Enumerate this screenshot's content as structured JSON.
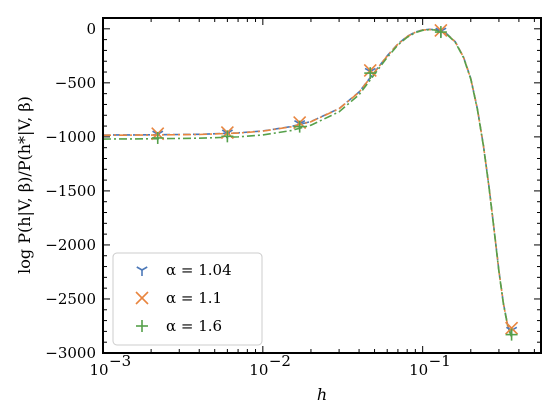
{
  "chart_data": {
    "type": "line",
    "title": "",
    "xlabel": "h",
    "ylabel": "log P(h|V, β)/P(h*|V, β)",
    "xscale": "log",
    "xlim": [
      0.001,
      0.55
    ],
    "ylim": [
      -3000,
      100
    ],
    "x_ticks": [
      {
        "value": 0.001,
        "label": "10",
        "exp": "−3"
      },
      {
        "value": 0.01,
        "label": "10",
        "exp": "−2"
      },
      {
        "value": 0.1,
        "label": "10",
        "exp": "−1"
      }
    ],
    "y_ticks": [
      {
        "value": 0,
        "label": "0"
      },
      {
        "value": -500,
        "label": "−500"
      },
      {
        "value": -1000,
        "label": "−1000"
      },
      {
        "value": -1500,
        "label": "−1500"
      },
      {
        "value": -2000,
        "label": "−2000"
      },
      {
        "value": -2500,
        "label": "−2500"
      },
      {
        "value": -3000,
        "label": "−3000"
      }
    ],
    "legend_position": "lower-left",
    "series": [
      {
        "name": "α = 1.04",
        "color": "#4c78b8",
        "marker": "tri-down",
        "line_style": "dashed",
        "markers_x": [
          0.0022,
          0.006,
          0.017,
          0.047,
          0.13,
          0.36
        ],
        "markers_y": [
          -975,
          -965,
          -878,
          -395,
          -22,
          -2790
        ],
        "curve_x": [
          0.001,
          0.002,
          0.004,
          0.007,
          0.01,
          0.015,
          0.02,
          0.03,
          0.04,
          0.05,
          0.06,
          0.07,
          0.08,
          0.09,
          0.1,
          0.11,
          0.12,
          0.13,
          0.14,
          0.16,
          0.18,
          0.2,
          0.22,
          0.24,
          0.26,
          0.28,
          0.3,
          0.32,
          0.34,
          0.36
        ],
        "curve_y": [
          -983,
          -981,
          -976,
          -963,
          -945,
          -905,
          -858,
          -738,
          -585,
          -400,
          -250,
          -140,
          -70,
          -30,
          -10,
          -5,
          -8,
          -20,
          -40,
          -120,
          -260,
          -460,
          -740,
          -1080,
          -1460,
          -1860,
          -2240,
          -2540,
          -2740,
          -2850
        ]
      },
      {
        "name": "α = 1.1",
        "color": "#e8853f",
        "marker": "x",
        "line_style": "dashdot",
        "markers_x": [
          0.0022,
          0.006,
          0.017,
          0.047,
          0.13,
          0.36
        ],
        "markers_y": [
          -970,
          -960,
          -868,
          -385,
          -15,
          -2770
        ],
        "curve_x": [
          0.001,
          0.002,
          0.004,
          0.007,
          0.01,
          0.015,
          0.02,
          0.03,
          0.04,
          0.05,
          0.06,
          0.07,
          0.08,
          0.09,
          0.1,
          0.11,
          0.12,
          0.13,
          0.14,
          0.16,
          0.18,
          0.2,
          0.22,
          0.24,
          0.26,
          0.28,
          0.3,
          0.32,
          0.34,
          0.36
        ],
        "curve_y": [
          -985,
          -983,
          -978,
          -965,
          -947,
          -907,
          -860,
          -740,
          -587,
          -402,
          -252,
          -142,
          -72,
          -32,
          -12,
          -7,
          -10,
          -22,
          -42,
          -122,
          -262,
          -462,
          -742,
          -1082,
          -1462,
          -1862,
          -2242,
          -2542,
          -2742,
          -2852
        ]
      },
      {
        "name": "α = 1.6",
        "color": "#55a04a",
        "marker": "plus",
        "line_style": "dashdot",
        "markers_x": [
          0.0022,
          0.006,
          0.017,
          0.047,
          0.13,
          0.36
        ],
        "markers_y": [
          -1010,
          -995,
          -905,
          -410,
          -30,
          -2830
        ],
        "curve_x": [
          0.001,
          0.002,
          0.004,
          0.007,
          0.01,
          0.015,
          0.02,
          0.03,
          0.04,
          0.05,
          0.06,
          0.07,
          0.08,
          0.09,
          0.1,
          0.11,
          0.12,
          0.13,
          0.14,
          0.16,
          0.18,
          0.2,
          0.22,
          0.24,
          0.26,
          0.28,
          0.3,
          0.32,
          0.34,
          0.36
        ],
        "curve_y": [
          -1020,
          -1018,
          -1012,
          -1000,
          -982,
          -942,
          -892,
          -768,
          -610,
          -420,
          -265,
          -150,
          -78,
          -36,
          -14,
          -8,
          -11,
          -24,
          -44,
          -125,
          -266,
          -466,
          -746,
          -1086,
          -1466,
          -1866,
          -2246,
          -2546,
          -2746,
          -2856
        ]
      }
    ]
  }
}
